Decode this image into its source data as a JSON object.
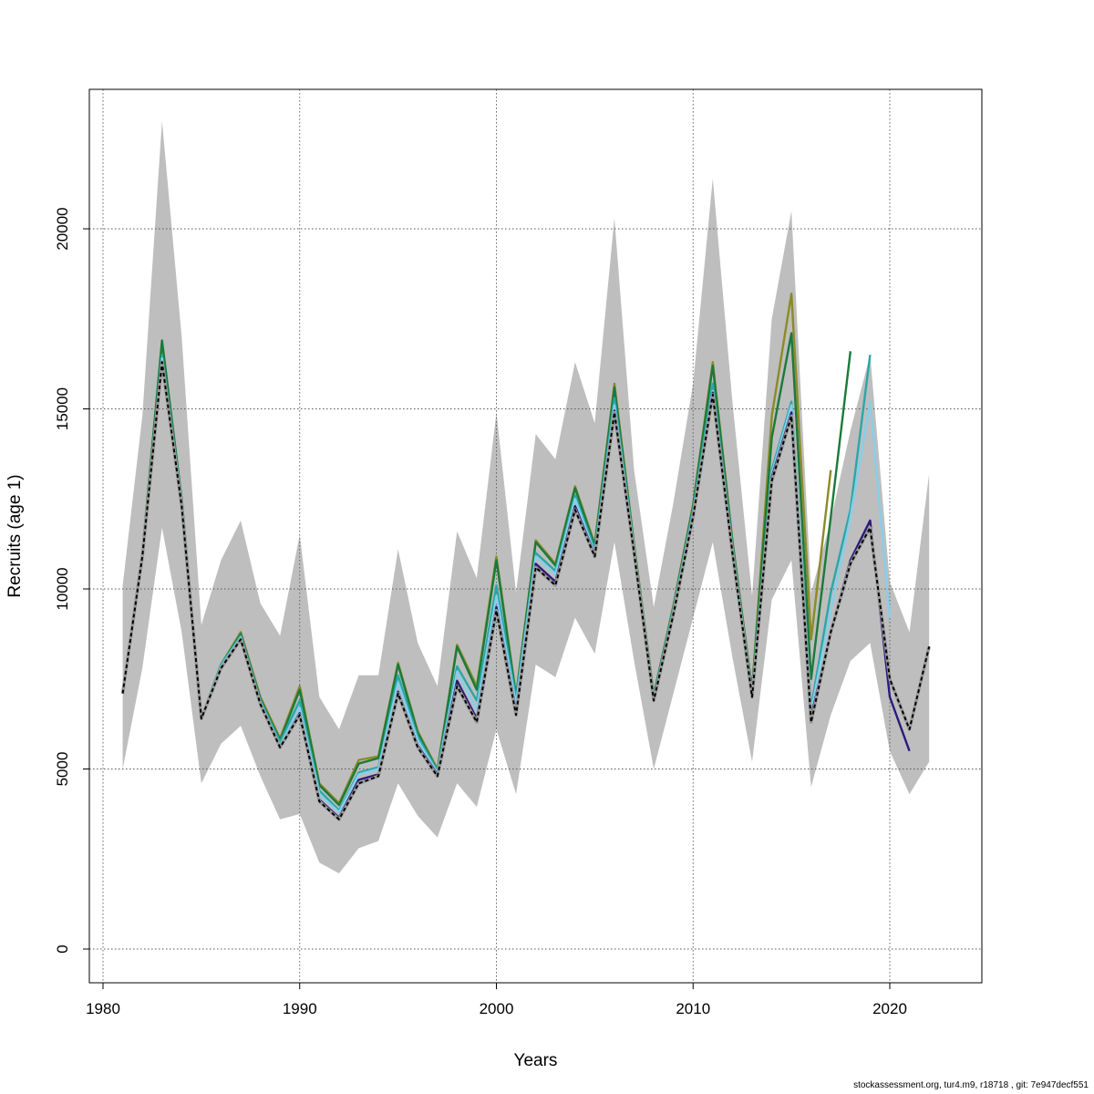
{
  "footer_text": "stockassessment.org, tur4.m9, r18718 , git: 7e947decf551",
  "chart_data": {
    "type": "line",
    "xlabel": "Years",
    "ylabel": "Recruits (age 1)",
    "xlim": [
      1980,
      2024
    ],
    "ylim": [
      0,
      23000
    ],
    "xticks": [
      1980,
      1990,
      2000,
      2010,
      2020
    ],
    "yticks": [
      0,
      5000,
      10000,
      15000,
      20000
    ],
    "grid": true,
    "band_color": "#bebebe",
    "confidence_band": {
      "x": [
        1981,
        1982,
        1983,
        1984,
        1985,
        1986,
        1987,
        1988,
        1989,
        1990,
        1991,
        1992,
        1993,
        1994,
        1995,
        1996,
        1997,
        1998,
        1999,
        2000,
        2001,
        2002,
        2003,
        2004,
        2005,
        2006,
        2007,
        2008,
        2009,
        2010,
        2011,
        2012,
        2013,
        2014,
        2015,
        2016,
        2017,
        2018,
        2019,
        2020,
        2021,
        2022
      ],
      "lower": [
        5000,
        7800,
        11700,
        8800,
        4600,
        5700,
        6200,
        4800,
        3600,
        3750,
        2400,
        2100,
        2800,
        3000,
        4600,
        3700,
        3100,
        4600,
        3950,
        6100,
        4300,
        7900,
        7550,
        9200,
        8200,
        11300,
        8000,
        5000,
        7100,
        9200,
        11300,
        8100,
        5200,
        9700,
        10800,
        4500,
        6500,
        8000,
        8500,
        5500,
        4300,
        5200
      ],
      "upper": [
        10100,
        14800,
        23000,
        17000,
        9000,
        10800,
        11900,
        9600,
        8700,
        11500,
        7000,
        6100,
        7600,
        7600,
        11100,
        8500,
        7300,
        11600,
        10300,
        14900,
        9900,
        14300,
        13600,
        16300,
        14600,
        20300,
        13300,
        9500,
        12400,
        15700,
        21400,
        15200,
        9800,
        17500,
        20500,
        9900,
        11900,
        14400,
        16500,
        10200,
        8800,
        13200
      ]
    },
    "series": [
      {
        "color": "#000000",
        "dashed": true,
        "x": [
          1981,
          1982,
          1983,
          1984,
          1985,
          1986,
          1987,
          1988,
          1989,
          1990,
          1991,
          1992,
          1993,
          1994,
          1995,
          1996,
          1997,
          1998,
          1999,
          2000,
          2001,
          2002,
          2003,
          2004,
          2005,
          2006,
          2007,
          2008,
          2009,
          2010,
          2011,
          2012,
          2013,
          2014,
          2015,
          2016,
          2017,
          2018,
          2019,
          2020,
          2021,
          2022
        ],
        "y": [
          7100,
          10900,
          16300,
          12300,
          6400,
          7800,
          8600,
          6800,
          5600,
          6500,
          4100,
          3600,
          4600,
          4800,
          7100,
          5600,
          4800,
          7300,
          6300,
          9400,
          6500,
          10600,
          10100,
          12200,
          10900,
          14900,
          11000,
          6900,
          9300,
          12000,
          15400,
          11000,
          7000,
          13000,
          14800,
          6300,
          8800,
          10700,
          11700,
          7500,
          6100,
          8400
        ]
      },
      {
        "color": "#2b1a7a",
        "dashed": false,
        "x": [
          1981,
          1982,
          1983,
          1984,
          1985,
          1986,
          1987,
          1988,
          1989,
          1990,
          1991,
          1992,
          1993,
          1994,
          1995,
          1996,
          1997,
          1998,
          1999,
          2000,
          2001,
          2002,
          2003,
          2004,
          2005,
          2006,
          2007,
          2008,
          2009,
          2010,
          2011,
          2012,
          2013,
          2014,
          2015,
          2016,
          2017,
          2018,
          2019,
          2020,
          2021
        ],
        "y": [
          7100,
          10900,
          16300,
          12300,
          6400,
          7800,
          8600,
          6800,
          5600,
          6550,
          4150,
          3650,
          4700,
          4850,
          7150,
          5650,
          4850,
          7450,
          6400,
          9500,
          6600,
          10700,
          10200,
          12300,
          10950,
          14950,
          11050,
          6950,
          9350,
          12050,
          15450,
          11050,
          7050,
          13100,
          14900,
          6450,
          8800,
          10800,
          11900,
          7000,
          5500
        ]
      },
      {
        "color": "#87ceeb",
        "dashed": false,
        "x": [
          1981,
          1982,
          1983,
          1984,
          1985,
          1986,
          1987,
          1988,
          1989,
          1990,
          1991,
          1992,
          1993,
          1994,
          1995,
          1996,
          1997,
          1998,
          1999,
          2000,
          2001,
          2002,
          2003,
          2004,
          2005,
          2006,
          2007,
          2008,
          2009,
          2010,
          2011,
          2012,
          2013,
          2014,
          2015,
          2016,
          2017,
          2018,
          2019,
          2020
        ],
        "y": [
          7100,
          10900,
          16400,
          12400,
          6400,
          7850,
          8650,
          6850,
          5650,
          6700,
          4300,
          3800,
          4850,
          5000,
          7400,
          5800,
          4900,
          7700,
          6650,
          9800,
          6800,
          10900,
          10400,
          12500,
          11000,
          15100,
          11100,
          6950,
          9400,
          12100,
          15500,
          11100,
          7100,
          13200,
          15100,
          6600,
          9400,
          12000,
          15200,
          9200
        ]
      },
      {
        "color": "#2aa7a7",
        "dashed": false,
        "x": [
          1981,
          1982,
          1983,
          1984,
          1985,
          1986,
          1987,
          1988,
          1989,
          1990,
          1991,
          1992,
          1993,
          1994,
          1995,
          1996,
          1997,
          1998,
          1999,
          2000,
          2001,
          2002,
          2003,
          2004,
          2005,
          2006,
          2007,
          2008,
          2009,
          2010,
          2011,
          2012,
          2013,
          2014,
          2015,
          2016,
          2017,
          2018,
          2019
        ],
        "y": [
          7100,
          10950,
          16500,
          12450,
          6400,
          7900,
          8700,
          6900,
          5750,
          6900,
          4400,
          3850,
          4900,
          5050,
          7600,
          5900,
          4950,
          7850,
          6900,
          10100,
          6950,
          11000,
          10500,
          12600,
          11100,
          15300,
          11150,
          7000,
          9450,
          12200,
          15700,
          11200,
          7100,
          13300,
          15200,
          6700,
          9900,
          12200,
          16500
        ]
      },
      {
        "color": "#1a7a3a",
        "dashed": false,
        "x": [
          1981,
          1982,
          1983,
          1984,
          1985,
          1986,
          1987,
          1988,
          1989,
          1990,
          1991,
          1992,
          1993,
          1994,
          1995,
          1996,
          1997,
          1998,
          1999,
          2000,
          2001,
          2002,
          2003,
          2004,
          2005,
          2006,
          2007,
          2008,
          2009,
          2010,
          2011,
          2012,
          2013,
          2014,
          2015,
          2016,
          2017,
          2018
        ],
        "y": [
          7100,
          11000,
          16900,
          12500,
          6400,
          7900,
          8750,
          6950,
          5800,
          7200,
          4550,
          4000,
          5150,
          5300,
          7900,
          6000,
          4950,
          8400,
          7200,
          10800,
          7000,
          11300,
          10650,
          12800,
          11200,
          15600,
          11200,
          7050,
          9500,
          12300,
          16200,
          11300,
          7200,
          14200,
          17100,
          7500,
          12000,
          16600
        ]
      },
      {
        "color": "#8b8b28",
        "dashed": false,
        "x": [
          1981,
          1982,
          1983,
          1984,
          1985,
          1986,
          1987,
          1988,
          1989,
          1990,
          1991,
          1992,
          1993,
          1994,
          1995,
          1996,
          1997,
          1998,
          1999,
          2000,
          2001,
          2002,
          2003,
          2004,
          2005,
          2006,
          2007,
          2008,
          2009,
          2010,
          2011,
          2012,
          2013,
          2014,
          2015,
          2016,
          2017
        ],
        "y": [
          7100,
          11000,
          16700,
          12500,
          6400,
          7900,
          8800,
          7000,
          5850,
          7300,
          4600,
          4050,
          5250,
          5350,
          7950,
          6050,
          5000,
          8450,
          7300,
          10900,
          7050,
          11350,
          10700,
          12850,
          11250,
          15700,
          11250,
          7050,
          9550,
          12350,
          16300,
          11350,
          7200,
          14800,
          18200,
          8600,
          13300
        ]
      }
    ]
  }
}
